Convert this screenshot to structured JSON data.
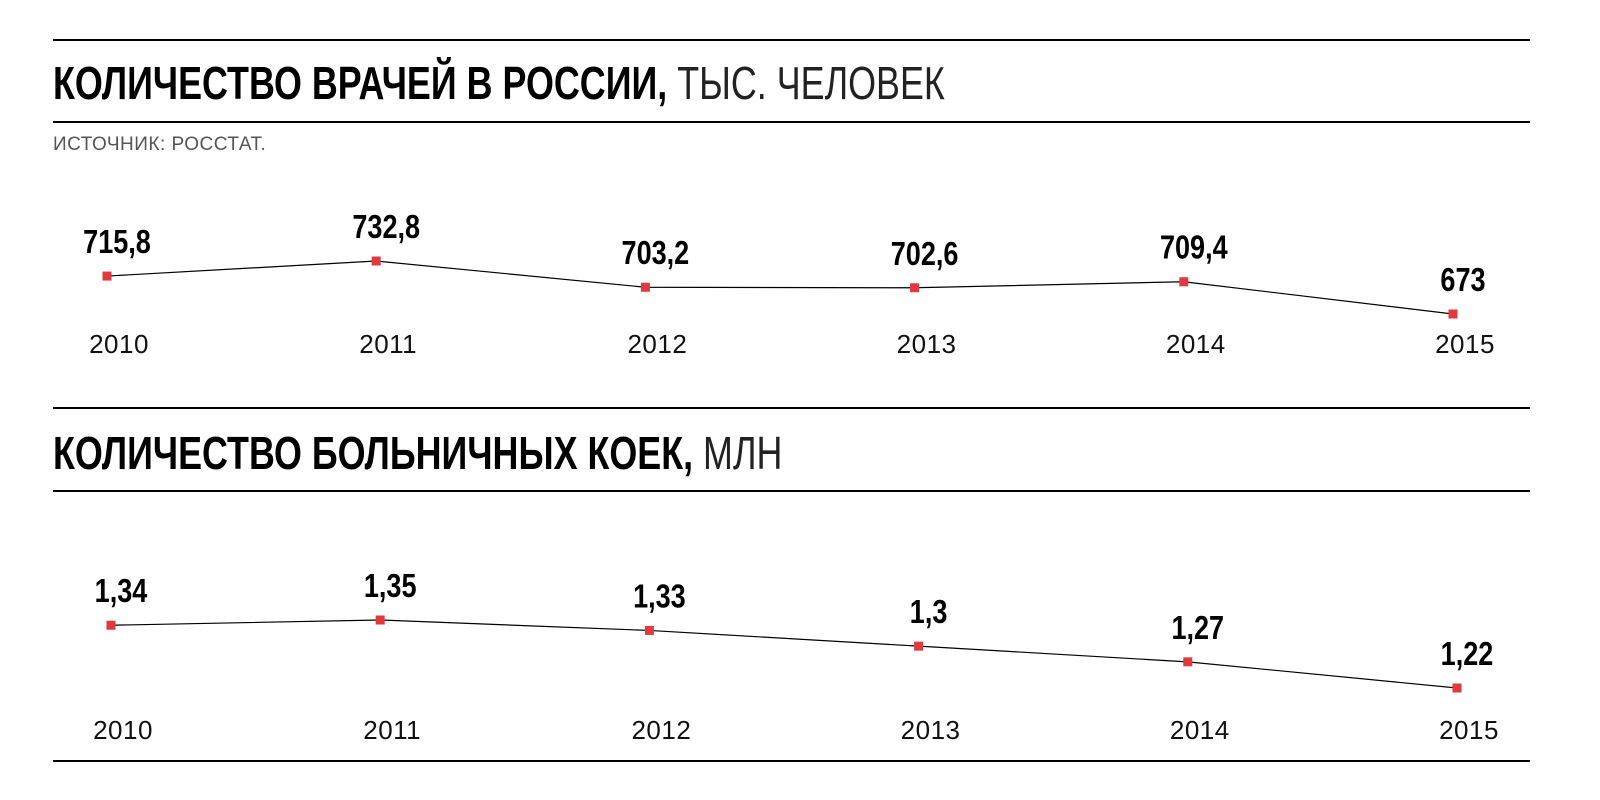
{
  "source": "ИСТОЧНИК: РОССТАТ.",
  "chart_data": [
    {
      "type": "line",
      "title": "КОЛИЧЕСТВО ВРАЧЕЙ В РОССИИ,",
      "unit": "ТЫС. ЧЕЛОВЕК",
      "categories": [
        "2010",
        "2011",
        "2012",
        "2013",
        "2014",
        "2015"
      ],
      "values": [
        715.8,
        732.8,
        703.2,
        702.6,
        709.4,
        673
      ],
      "value_labels": [
        "715,8",
        "732,8",
        "703,2",
        "702,6",
        "709,4",
        "673"
      ],
      "ylim": [
        673,
        732.8
      ],
      "grid": false,
      "line_color": "#000000",
      "marker_color": "#e0393e"
    },
    {
      "type": "line",
      "title": "КОЛИЧЕСТВО БОЛЬНИЧНЫХ КОЕК,",
      "unit": "МЛН",
      "categories": [
        "2010",
        "2011",
        "2012",
        "2013",
        "2014",
        "2015"
      ],
      "values": [
        1.34,
        1.35,
        1.33,
        1.3,
        1.27,
        1.22
      ],
      "value_labels": [
        "1,34",
        "1,35",
        "1,33",
        "1,3",
        "1,27",
        "1,22"
      ],
      "ylim": [
        1.22,
        1.35
      ],
      "grid": false,
      "line_color": "#000000",
      "marker_color": "#e0393e"
    }
  ]
}
